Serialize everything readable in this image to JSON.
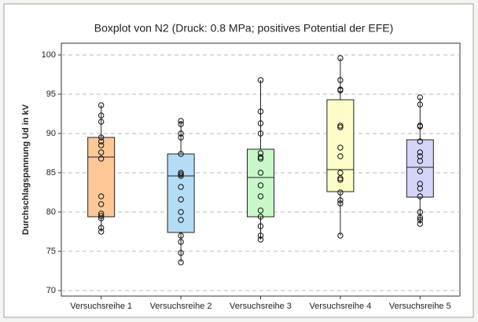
{
  "chart_data": {
    "type": "box",
    "title": "Boxplot von N2 (Druck: 0.8 MPa; positives Potential der EFE)",
    "y_label": "Durchschlagspannung Ud in kV",
    "categories": [
      "Versuchsreihe 1",
      "Versuchsreihe 2",
      "Versuchsreihe 3",
      "Versuchsreihe 4",
      "Versuchsreihe 5"
    ],
    "boxes": [
      {
        "low": 77.5,
        "q1": 79.4,
        "median": 87,
        "q3": 89.5,
        "high": 93.6,
        "color": "#fdc896",
        "points": [
          93.6,
          92.3,
          91.5,
          89.5,
          89,
          88.5,
          87.6,
          86.8,
          82,
          81,
          79.8,
          79.5,
          79.2,
          78,
          77.5
        ]
      },
      {
        "low": 73.6,
        "q1": 77.4,
        "median": 84.6,
        "q3": 87.4,
        "high": 91.6,
        "color": "#b4dcf4",
        "points": [
          91.6,
          91.2,
          90,
          89.5,
          87.4,
          85,
          84.8,
          84.6,
          83.2,
          81.6,
          80,
          79,
          77,
          76.2,
          74.8,
          73.6
        ]
      },
      {
        "low": 76.5,
        "q1": 79.4,
        "median": 84.4,
        "q3": 88,
        "high": 96.8,
        "color": "#c8f8c8",
        "points": [
          96.8,
          92.8,
          91.3,
          90,
          87.5,
          87,
          86.8,
          85,
          83.4,
          82,
          80.2,
          79.4,
          78.2,
          77,
          76.5
        ]
      },
      {
        "low": 77,
        "q1": 82.6,
        "median": 85.4,
        "q3": 94.3,
        "high": 99.6,
        "color": "#fcfcc8",
        "points": [
          99.6,
          96.8,
          95.6,
          95.5,
          91,
          90.8,
          88.2,
          87.1,
          85,
          84.3,
          84.1,
          82.5,
          81.5,
          81.1,
          77
        ]
      },
      {
        "low": 78.5,
        "q1": 81.9,
        "median": 85.7,
        "q3": 89.2,
        "high": 94.6,
        "color": "#d4d4f8",
        "points": [
          94.6,
          93.7,
          91,
          90.9,
          89,
          87.6,
          87.1,
          86.5,
          85.2,
          83.6,
          83,
          82,
          80,
          79.3,
          79,
          78.5
        ]
      }
    ],
    "ylim": [
      69.3,
      101.5
    ],
    "yticks": [
      70,
      75,
      80,
      85,
      90,
      95,
      100
    ],
    "grid": true
  }
}
